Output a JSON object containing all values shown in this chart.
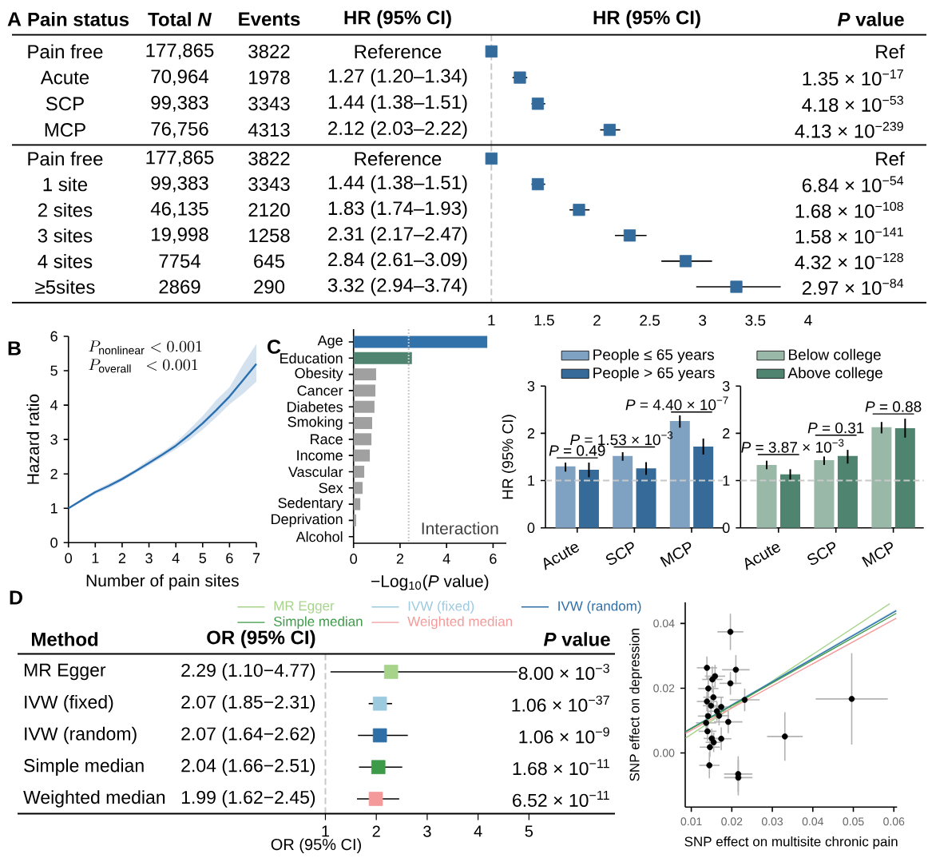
{
  "chart_data": [
    {
      "type": "scatter",
      "orientation": "horizontal",
      "marker": "square",
      "color": "#336b9c",
      "tick_labels": "y",
      "categories": [
        "Pain free",
        "Acute",
        "SCP",
        "MCP"
      ],
      "values": [
        1,
        1.27,
        1.44,
        2.12
      ],
      "errors": [
        null,
        [
          1.2,
          1.34
        ],
        [
          1.38,
          1.51
        ],
        [
          2.03,
          2.22
        ]
      ],
      "xlim": [
        -3.54,
        5.12
      ],
      "ref_lines": [
        {
          "axis": "x",
          "value": 1,
          "color": "#c8c8c8",
          "line_style": "dashed"
        }
      ],
      "annotations": [
        "A",
        "Pain status",
        "Total *N*",
        "Events",
        "HR (95% CI)",
        "HR (95% CI)",
        "*P* value",
        "177,865",
        "3822",
        "Reference",
        "Ref",
        "70,964",
        "1978",
        "1.27 (1.20–1.34)",
        "1.35 × 10$^{−17}$",
        "99,383",
        "3343",
        "1.44 (1.38–1.51)",
        "4.18 × 10$^{−53}$",
        "76,756",
        "4313",
        "2.12 (2.03–2.22)",
        "4.13 × 10$^{−239}$"
      ]
    },
    {
      "type": "scatter",
      "orientation": "horizontal",
      "marker": "square",
      "color": "#336b9c",
      "categories": [
        "Pain free",
        "1 site",
        "2 sites",
        "3 sites",
        "4 sites",
        "≥5sites"
      ],
      "values": [
        1,
        1.44,
        1.83,
        2.31,
        2.84,
        3.32
      ],
      "errors": [
        null,
        [
          1.38,
          1.51
        ],
        [
          1.74,
          1.93
        ],
        [
          2.17,
          2.47
        ],
        [
          2.61,
          3.09
        ],
        [
          2.94,
          3.74
        ]
      ],
      "xlim": [
        -3.54,
        5.12
      ],
      "xticks": [
        1,
        1.5,
        2,
        2.5,
        3,
        3.5,
        4
      ],
      "ref_lines": [
        {
          "axis": "x",
          "value": 1,
          "color": "#c8c8c8",
          "line_style": "dashed"
        }
      ],
      "annotations": [
        "177,865",
        "3822",
        "Reference",
        "Ref",
        "99,383",
        "3343",
        "1.44 (1.38–1.51)",
        "6.84 × 10$^{−54}$",
        "46,135",
        "2120",
        "1.83 (1.74–1.93)",
        "1.68 × 10$^{−108}$",
        "19,998",
        "1258",
        "2.31 (2.17–2.47)",
        "1.58 × 10$^{−141}$",
        "7754",
        "645",
        "2.84 (2.61–3.09)",
        "4.32 × 10$^{−128}$",
        "2869",
        "290",
        "3.32 (2.94–3.74)",
        "2.97 × 10$^{−84}$"
      ]
    },
    {
      "type": "line",
      "x": [
        0,
        0.5,
        1,
        1.5,
        2,
        2.5,
        3,
        3.5,
        4,
        4.5,
        5,
        5.5,
        6,
        6.5,
        7
      ],
      "series": [
        {
          "color": "#2a6fb0",
          "values": [
            1.0,
            1.24,
            1.47,
            1.65,
            1.85,
            2.08,
            2.32,
            2.56,
            2.82,
            3.13,
            3.47,
            3.85,
            4.25,
            4.72,
            5.2
          ],
          "lower": [
            1.0,
            1.19,
            1.41,
            1.58,
            1.79,
            2.02,
            2.25,
            2.48,
            2.72,
            2.98,
            3.29,
            3.64,
            4.02,
            4.33,
            4.68
          ],
          "upper": [
            1.0,
            1.29,
            1.52,
            1.72,
            1.91,
            2.14,
            2.41,
            2.64,
            2.91,
            3.29,
            3.68,
            4.14,
            4.52,
            5.18,
            5.78
          ]
        }
      ],
      "xlim": [
        0,
        7
      ],
      "ylim": [
        0,
        6
      ],
      "xticks": [
        0,
        1,
        2,
        3,
        4,
        5,
        6,
        7
      ],
      "yticks": [
        0,
        1,
        2,
        3,
        4,
        5,
        6
      ],
      "xlabel": "Number of pain sites",
      "ylabel": "Hazard ratio",
      "annotations": [
        "B",
        "P_{\\mathrm{nonlinear}} < 0.001",
        "P_{\\mathrm{overall}}\\ \\ < 0.001"
      ]
    },
    {
      "type": "bar",
      "orientation": "horizontal",
      "categories": [
        "Age",
        "Education",
        "Obesity",
        "Cancer",
        "Diabetes",
        "Smoking",
        "Race",
        "Income",
        "Vascular",
        "Sex",
        "Sedentary",
        "Deprivation",
        "Alcohol"
      ],
      "values": [
        5.75,
        2.51,
        0.97,
        0.94,
        0.9,
        0.8,
        0.77,
        0.7,
        0.46,
        0.39,
        0.29,
        0.11,
        null
      ],
      "colors": [
        "#3272ab",
        "#4f8570",
        "#a0a0a0",
        "#a0a0a0",
        "#a0a0a0",
        "#a0a0a0",
        "#a0a0a0",
        "#a0a0a0",
        "#a0a0a0",
        "#a0a0a0",
        "#a0a0a0",
        "#a0a0a0",
        "#a0a0a0"
      ],
      "xlim": [
        0,
        6.57
      ],
      "xticks": [
        0,
        2,
        4,
        6
      ],
      "xlabel": "−Log$_{10}$(*P* value)",
      "ref_lines": [
        {
          "axis": "x",
          "value": 2.37,
          "label": "Interaction",
          "color": "#c8c8c8",
          "line_style": "dotted"
        }
      ],
      "annotations": [
        "C"
      ]
    },
    {
      "type": "bar",
      "categories": [
        "Acute",
        "SCP",
        "MCP"
      ],
      "series": [
        {
          "name": "People ≤ 65 years",
          "color": "#7fa2c2",
          "values": [
            1.3,
            1.52,
            2.26
          ],
          "errors": [
            [
              1.19,
              1.38
            ],
            [
              1.42,
              1.6
            ],
            [
              2.12,
              2.38
            ]
          ]
        },
        {
          "name": "People > 65 years",
          "color": "#366b99",
          "values": [
            1.23,
            1.26,
            1.72
          ],
          "errors": [
            [
              1.07,
              1.38
            ],
            [
              1.12,
              1.39
            ],
            [
              1.55,
              1.89
            ]
          ]
        }
      ],
      "ylim": [
        0,
        3
      ],
      "yticks": [
        0,
        1,
        2,
        3
      ],
      "ylabel": "HR (95% CI)",
      "legend": "top",
      "ref_lines": [
        {
          "axis": "y",
          "value": 1,
          "color": "#c8c8c8",
          "line_style": "dashed"
        }
      ],
      "annotations": [
        "*P* = 0.49",
        "*P* = 1.53 × 10$^{−3}$",
        "*P* = 4.40 × 10$^{−7}$"
      ]
    },
    {
      "type": "bar",
      "categories": [
        "Acute",
        "SCP",
        "MCP"
      ],
      "series": [
        {
          "name": "Below college",
          "color": "#9ab8a8",
          "values": [
            1.33,
            1.43,
            2.13
          ],
          "errors": [
            [
              1.24,
              1.42
            ],
            [
              1.33,
              1.51
            ],
            [
              2.0,
              2.24
            ]
          ]
        },
        {
          "name": "Above college",
          "color": "#4e8470",
          "values": [
            1.13,
            1.52,
            2.11
          ],
          "errors": [
            [
              1.01,
              1.24
            ],
            [
              1.36,
              1.65
            ],
            [
              1.91,
              2.31
            ]
          ]
        }
      ],
      "ylim": [
        0,
        3
      ],
      "yticks": [
        0,
        1,
        2,
        3
      ],
      "legend": "top",
      "ref_lines": [
        {
          "axis": "y",
          "value": 1,
          "color": "#c8c8c8",
          "line_style": "dashed"
        }
      ],
      "annotations": [
        "*P* = 3.87 × 10$^{−3}$",
        "*P* = 0.31",
        "*P* = 0.88"
      ]
    },
    {
      "type": "scatter",
      "orientation": "horizontal",
      "marker": "square",
      "categories": [
        "MR Egger",
        "IVW (fixed)",
        "IVW (random)",
        "Simple median",
        "Weighted median"
      ],
      "values": [
        2.29,
        2.07,
        2.07,
        2.04,
        1.99
      ],
      "errors": [
        [
          1.1,
          4.77
        ],
        [
          1.85,
          2.31
        ],
        [
          1.64,
          2.62
        ],
        [
          1.66,
          2.51
        ],
        [
          1.62,
          2.45
        ]
      ],
      "colors": [
        "#a6d48a",
        "#9ccadf",
        "#2f6fa8",
        "#3d9a48",
        "#f49a9a"
      ],
      "xlim": [
        -5.05,
        6.69
      ],
      "xticks": [
        1,
        2,
        3,
        4,
        5
      ],
      "xlabel": "OR (95% CI)",
      "ref_lines": [
        {
          "axis": "x",
          "value": 1,
          "color": "#c8c8c8",
          "line_style": "dashed"
        }
      ],
      "annotations": [
        "D",
        "Method",
        "OR (95% CI)",
        "*P* value",
        "2.29 (1.10−4.77)",
        "8.00 × 10$^{−3}$",
        "2.07 (1.85−2.31)",
        "1.06 × 10$^{−37}$",
        "2.07 (1.64−2.62)",
        "1.06 × 10$^{−9}$",
        "2.04 (1.66−2.51)",
        "1.68 × 10$^{−11}$",
        "1.99 (1.62−2.45)",
        "6.52 × 10$^{−11}$"
      ]
    },
    {
      "type": "scatter",
      "legend": "top left",
      "series": [
        {
          "type": "scatter",
          "color": "#000000",
          "x": [
            0.01965,
            0.01386,
            0.021,
            0.01586,
            0.0152,
            0.01965,
            0.0142,
            0.01546,
            0.01386,
            0.02318,
            0.0496,
            0.01486,
            0.01739,
            0.01633,
            0.01413,
            0.01686,
            0.01912,
            0.01366,
            0.014,
            0.0331,
            0.01506,
            0.01739,
            0.01553,
            0.01459,
            0.01446,
            0.02158,
            0.0216
          ],
          "values": [
            0.0374,
            0.0263,
            0.0257,
            0.0237,
            0.0227,
            0.0215,
            0.0199,
            0.0172,
            0.0159,
            0.0164,
            0.0167,
            0.0146,
            0.0142,
            0.0129,
            0.0114,
            0.0115,
            0.0096,
            0.0093,
            0.0067,
            0.0051,
            0.0045,
            0.0044,
            0.0033,
            0.0018,
            -0.0038,
            -0.0065,
            -0.0076
          ],
          "xerrors": [
            0.0032,
            0.0025,
            0.0034,
            0.0025,
            0.0025,
            0.0027,
            0.0025,
            0.0025,
            0.0025,
            0.0037,
            0.0089,
            0.002,
            0.0025,
            0.0025,
            0.0025,
            0.0025,
            0.0035,
            0.0025,
            0.0022,
            0.0044,
            0.002,
            0.0025,
            0.002,
            0.0025,
            0.0025,
            0.0035,
            0.0035
          ],
          "errors": [
            0.0056,
            0.0035,
            0.0045,
            0.0035,
            0.004,
            0.0035,
            0.0035,
            0.0035,
            0.003,
            0.0035,
            0.0141,
            0.003,
            0.003,
            0.003,
            0.003,
            0.003,
            0.0035,
            0.003,
            0.003,
            0.0075,
            0.003,
            0.0035,
            0.003,
            0.003,
            0.004,
            0.0055,
            0.0055
          ]
        },
        {
          "type": "line",
          "name": "MR Egger",
          "color": "#a6d48a",
          "x": [
            0.0086,
            0.059
          ],
          "values": [
            0.0046,
            0.0461
          ]
        },
        {
          "type": "line",
          "name": "IVW (fixed)",
          "color": "#9ccadf",
          "x": [
            0.0086,
            0.0606
          ],
          "values": [
            0.0067,
            0.0441
          ]
        },
        {
          "type": "line",
          "name": "IVW (random)",
          "color": "#2f6fa8",
          "x": [
            0.0086,
            0.0606
          ],
          "values": [
            0.0066,
            0.0439
          ]
        },
        {
          "type": "line",
          "name": "Simple median",
          "color": "#3d9a48",
          "x": [
            0.0086,
            0.0606
          ],
          "values": [
            0.0066,
            0.0431
          ]
        },
        {
          "type": "line",
          "name": "Weighted median",
          "color": "#f49a9a",
          "x": [
            0.0086,
            0.0606
          ],
          "values": [
            0.0061,
            0.0416
          ]
        }
      ],
      "xlim": [
        0.0085,
        0.0608
      ],
      "ylim": [
        -0.0167,
        0.0465
      ],
      "xticks": [
        0.01,
        0.02,
        0.03,
        0.04,
        0.05,
        0.06
      ],
      "yticks": [
        {
          "value": 0,
          "label": "0.00"
        },
        0.02,
        0.04
      ],
      "xlabel": "SNP effect on multisite chronic pain",
      "ylabel": "SNP effect on depression"
    }
  ]
}
